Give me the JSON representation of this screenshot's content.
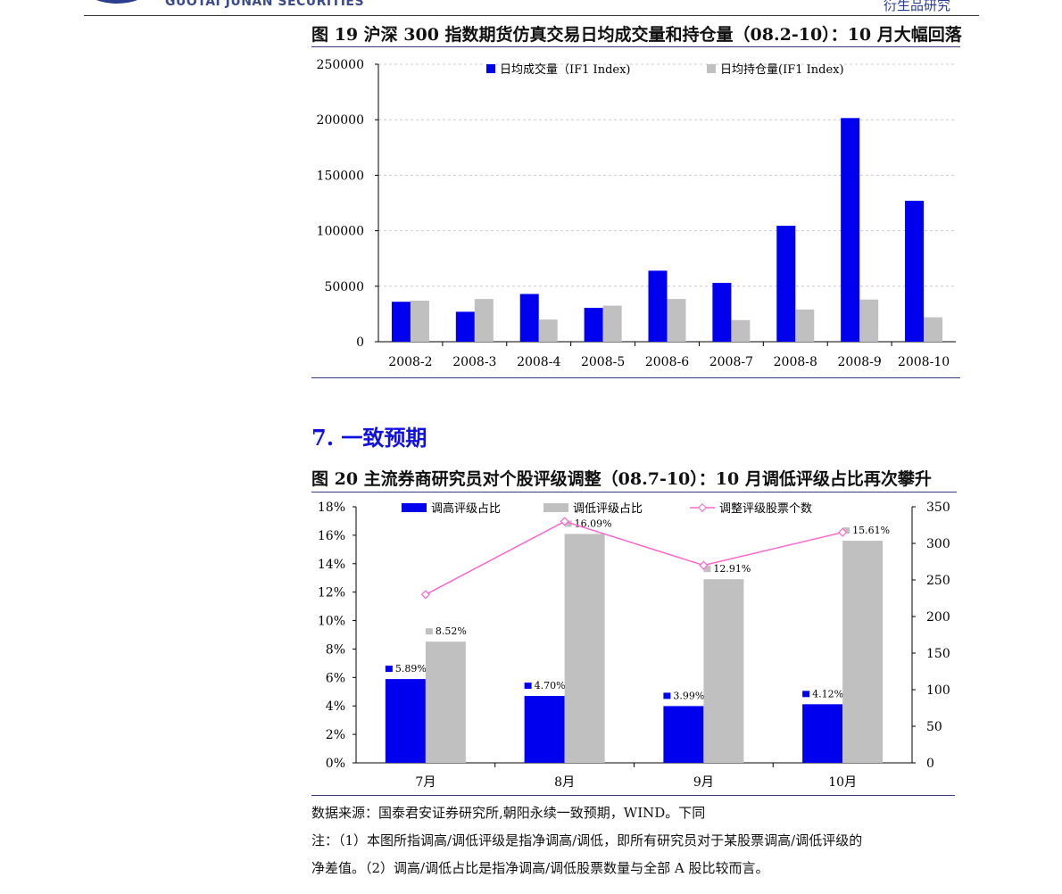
{
  "header": {
    "logo_text": "GUOTAI JUNAN SECURITIES",
    "right_text": "衍生品研究"
  },
  "figure19": {
    "title": "图 19  沪深 300 指数期货仿真交易日均成交量和持仓量（08.2-10）：10 月大幅回落"
  },
  "section7": {
    "title": "7.  一致预期"
  },
  "figure20": {
    "title": "图 20  主流券商研究员对个股评级调整（08.7-10）：10 月调低评级占比再次攀升"
  },
  "notes": {
    "source": "数据来源：国泰君安证券研究所,朝阳永续一致预期，WIND。下同",
    "note_line1": "注：（1）本图所指调高/调低评级是指净调高/调低，即所有研究员对于某股票调高/调低评级的",
    "note_line2": "净差值。（2）调高/调低占比是指净调高/调低股票数量与全部 A 股比较而言。"
  },
  "chart_data": [
    {
      "type": "bar",
      "title": "",
      "categories": [
        "2008-2",
        "2008-3",
        "2008-4",
        "2008-5",
        "2008-6",
        "2008-7",
        "2008-8",
        "2008-9",
        "2008-10"
      ],
      "series": [
        {
          "name": "日均成交量（IF1 Index)",
          "color": "#0000ee",
          "values": [
            36000,
            27000,
            43000,
            30500,
            64000,
            53000,
            104500,
            201500,
            127000
          ]
        },
        {
          "name": "日均持仓量(IF1 Index)",
          "color": "#c0c0c0",
          "values": [
            37000,
            38500,
            20000,
            32500,
            38500,
            19500,
            29000,
            38000,
            22000
          ]
        }
      ],
      "yticks": [
        "0",
        "50000",
        "100000",
        "150000",
        "200000",
        "250000"
      ],
      "ylim": [
        0,
        250000
      ],
      "legend": "top-center",
      "grid": true
    },
    {
      "type": "bar",
      "title": "",
      "categories": [
        "7月",
        "8月",
        "9月",
        "10月"
      ],
      "series": [
        {
          "name": "调高评级占比",
          "color": "#0000ee",
          "axis": "left",
          "values": [
            5.89,
            4.7,
            3.99,
            4.12
          ],
          "labels": [
            "5.89%",
            "4.70%",
            "3.99%",
            "4.12%"
          ]
        },
        {
          "name": "调低评级占比",
          "color": "#c0c0c0",
          "axis": "left",
          "values": [
            8.52,
            16.09,
            12.91,
            15.61
          ],
          "labels": [
            "8.52%",
            "16.09%",
            "12.91%",
            "15.61%"
          ]
        },
        {
          "name": "调整评级股票个数",
          "color": "#ff66cc",
          "axis": "right",
          "type": "line",
          "values": [
            230,
            330,
            270,
            315
          ]
        }
      ],
      "yticks_left": [
        "0%",
        "2%",
        "4%",
        "6%",
        "8%",
        "10%",
        "12%",
        "14%",
        "16%",
        "18%"
      ],
      "ylim_left": [
        0,
        18
      ],
      "yticks_right": [
        "0",
        "50",
        "100",
        "150",
        "200",
        "250",
        "300",
        "350"
      ],
      "ylim_right": [
        0,
        350
      ],
      "legend": "top-center",
      "grid": false
    }
  ]
}
